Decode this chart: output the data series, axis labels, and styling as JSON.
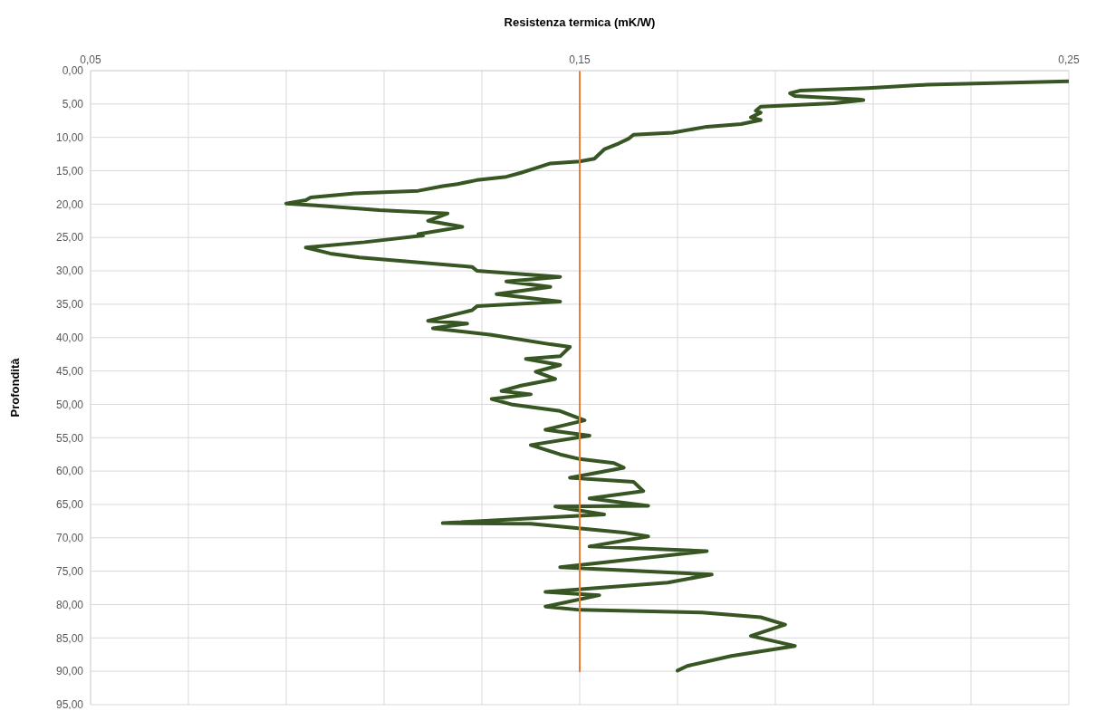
{
  "chart_data": {
    "type": "line",
    "xlabel": "Resistenza termica (mK/W)",
    "ylabel": "Profondità",
    "xlim": [
      0.05,
      0.25
    ],
    "xticks": [
      {
        "value": 0.05,
        "label": "0,05"
      },
      {
        "value": 0.07,
        "label": null
      },
      {
        "value": 0.09,
        "label": null
      },
      {
        "value": 0.11,
        "label": null
      },
      {
        "value": 0.13,
        "label": null
      },
      {
        "value": 0.15,
        "label": "0,15"
      },
      {
        "value": 0.17,
        "label": null
      },
      {
        "value": 0.19,
        "label": null
      },
      {
        "value": 0.21,
        "label": null
      },
      {
        "value": 0.23,
        "label": null
      },
      {
        "value": 0.25,
        "label": "0,25"
      }
    ],
    "ylim": [
      95,
      0
    ],
    "yticks": [
      {
        "value": 0,
        "label": "0,00"
      },
      {
        "value": 5,
        "label": "5,00"
      },
      {
        "value": 10,
        "label": "10,00"
      },
      {
        "value": 15,
        "label": "15,00"
      },
      {
        "value": 20,
        "label": "20,00"
      },
      {
        "value": 25,
        "label": "25,00"
      },
      {
        "value": 30,
        "label": "30,00"
      },
      {
        "value": 35,
        "label": "35,00"
      },
      {
        "value": 40,
        "label": "40,00"
      },
      {
        "value": 45,
        "label": "45,00"
      },
      {
        "value": 50,
        "label": "50,00"
      },
      {
        "value": 55,
        "label": "55,00"
      },
      {
        "value": 60,
        "label": "60,00"
      },
      {
        "value": 65,
        "label": "65,00"
      },
      {
        "value": 70,
        "label": "70,00"
      },
      {
        "value": 75,
        "label": "75,00"
      },
      {
        "value": 80,
        "label": "80,00"
      },
      {
        "value": 85,
        "label": "85,00"
      },
      {
        "value": 90,
        "label": "90,00"
      },
      {
        "value": 95,
        "label": "95,00"
      }
    ],
    "grid": true,
    "marker": "none",
    "line_style": "solid",
    "series": [
      {
        "color": "#375623",
        "x": [
          0.25,
          0.221,
          0.209,
          0.195,
          0.193,
          0.194,
          0.207,
          0.208,
          0.202,
          0.187,
          0.186,
          0.187,
          0.185,
          0.187,
          0.183,
          0.176,
          0.169,
          0.161,
          0.16,
          0.158,
          0.155,
          0.153,
          0.15,
          0.144,
          0.141,
          0.138,
          0.135,
          0.129,
          0.125,
          0.122,
          0.117,
          0.104,
          0.095,
          0.094,
          0.09,
          0.096,
          0.109,
          0.123,
          0.119,
          0.126,
          0.117,
          0.118,
          0.106,
          0.094,
          0.099,
          0.105,
          0.128,
          0.129,
          0.146,
          0.135,
          0.144,
          0.133,
          0.146,
          0.129,
          0.128,
          0.119,
          0.127,
          0.12,
          0.132,
          0.144,
          0.148,
          0.146,
          0.139,
          0.146,
          0.141,
          0.145,
          0.138,
          0.134,
          0.14,
          0.132,
          0.136,
          0.146,
          0.151,
          0.143,
          0.152,
          0.14,
          0.146,
          0.15,
          0.157,
          0.159,
          0.148,
          0.161,
          0.163,
          0.152,
          0.164,
          0.145,
          0.155,
          0.122,
          0.14,
          0.159,
          0.164,
          0.152,
          0.176,
          0.146,
          0.177,
          0.168,
          0.143,
          0.154,
          0.143,
          0.15,
          0.175,
          0.187,
          0.192,
          0.185,
          0.194,
          0.181,
          0.172,
          0.17
        ],
        "values": [
          1.6,
          2.1,
          2.6,
          3.0,
          3.4,
          3.8,
          4.3,
          4.4,
          4.9,
          5.4,
          6.0,
          6.3,
          7.0,
          7.4,
          8.0,
          8.4,
          9.3,
          9.6,
          10.2,
          10.9,
          11.8,
          13.2,
          13.6,
          13.9,
          14.6,
          15.3,
          15.9,
          16.4,
          17.0,
          17.3,
          18.0,
          18.4,
          19.0,
          19.4,
          19.9,
          20.2,
          20.9,
          21.4,
          22.5,
          23.4,
          24.5,
          24.7,
          25.7,
          26.5,
          27.4,
          28.0,
          29.4,
          30.0,
          30.9,
          31.6,
          32.4,
          33.5,
          34.6,
          35.3,
          35.9,
          37.5,
          37.9,
          38.6,
          39.6,
          41.0,
          41.4,
          42.8,
          43.2,
          44.1,
          45.1,
          46.2,
          47.2,
          48.0,
          48.5,
          49.2,
          50.0,
          51.0,
          52.4,
          53.8,
          54.7,
          56.1,
          57.5,
          58.2,
          58.8,
          59.5,
          61.0,
          61.6,
          63.0,
          64.1,
          65.2,
          65.3,
          66.5,
          67.8,
          67.9,
          69.2,
          69.8,
          71.3,
          72.0,
          74.4,
          75.5,
          76.7,
          78.1,
          78.6,
          80.3,
          80.8,
          81.2,
          81.9,
          83.0,
          84.7,
          86.2,
          87.7,
          89.2,
          89.9
        ]
      },
      {
        "color": "#ed7d31",
        "x": [
          0.15,
          0.15
        ],
        "values": [
          0,
          90
        ]
      }
    ]
  }
}
